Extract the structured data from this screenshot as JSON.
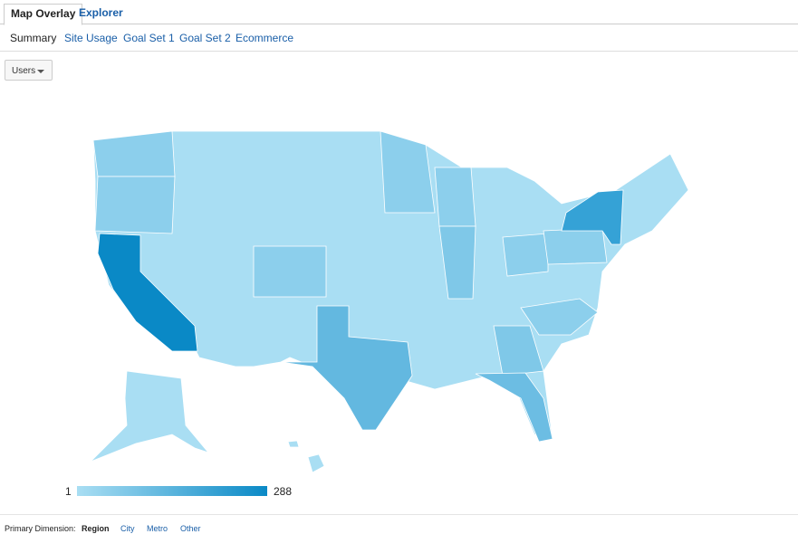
{
  "tabs": [
    "Map Overlay",
    "Explorer"
  ],
  "subtabs": [
    "Summary",
    "Site Usage",
    "Goal Set 1",
    "Goal Set 2",
    "Ecommerce"
  ],
  "metric_dropdown": "Users",
  "legend": {
    "min": 1,
    "max": 288
  },
  "primary_dimension": {
    "label": "Primary Dimension:",
    "options": [
      "Region",
      "City",
      "Metro",
      "Other"
    ]
  }
}
